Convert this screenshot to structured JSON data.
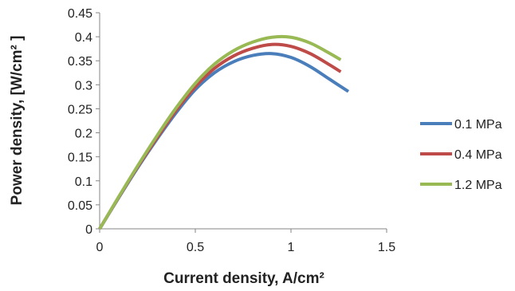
{
  "chart_data": {
    "type": "line",
    "title": "",
    "xlabel": "Current density, A/cm²",
    "ylabel": "Power density, [W/cm² ]",
    "xlim": [
      0,
      1.5
    ],
    "ylim": [
      0,
      0.45
    ],
    "x_ticks": [
      "0",
      "0.5",
      "1",
      "1.5"
    ],
    "y_ticks": [
      "0",
      "0.05",
      "0.1",
      "0.15",
      "0.2",
      "0.25",
      "0.3",
      "0.35",
      "0.4",
      "0.45"
    ],
    "grid": false,
    "legend_position": "right",
    "series": [
      {
        "name": "0.1 MPa",
        "color": "#4a7ebb",
        "x": [
          0,
          0.1,
          0.2,
          0.3,
          0.4,
          0.5,
          0.6,
          0.7,
          0.8,
          0.9,
          1.0,
          1.1,
          1.2,
          1.3
        ],
        "y": [
          0,
          0.065,
          0.128,
          0.187,
          0.242,
          0.29,
          0.325,
          0.348,
          0.361,
          0.365,
          0.357,
          0.338,
          0.312,
          0.286
        ]
      },
      {
        "name": "0.4 MPa",
        "color": "#be4b48",
        "x": [
          0,
          0.1,
          0.2,
          0.3,
          0.4,
          0.5,
          0.6,
          0.7,
          0.8,
          0.9,
          1.0,
          1.1,
          1.2,
          1.26
        ],
        "y": [
          0,
          0.066,
          0.13,
          0.19,
          0.247,
          0.296,
          0.334,
          0.36,
          0.376,
          0.384,
          0.38,
          0.365,
          0.342,
          0.327
        ]
      },
      {
        "name": "1.2 MPa",
        "color": "#98b954",
        "x": [
          0,
          0.1,
          0.2,
          0.3,
          0.4,
          0.5,
          0.6,
          0.7,
          0.8,
          0.9,
          1.0,
          1.1,
          1.2,
          1.26
        ],
        "y": [
          0,
          0.067,
          0.132,
          0.194,
          0.252,
          0.303,
          0.343,
          0.371,
          0.389,
          0.399,
          0.399,
          0.387,
          0.366,
          0.352
        ]
      }
    ]
  }
}
